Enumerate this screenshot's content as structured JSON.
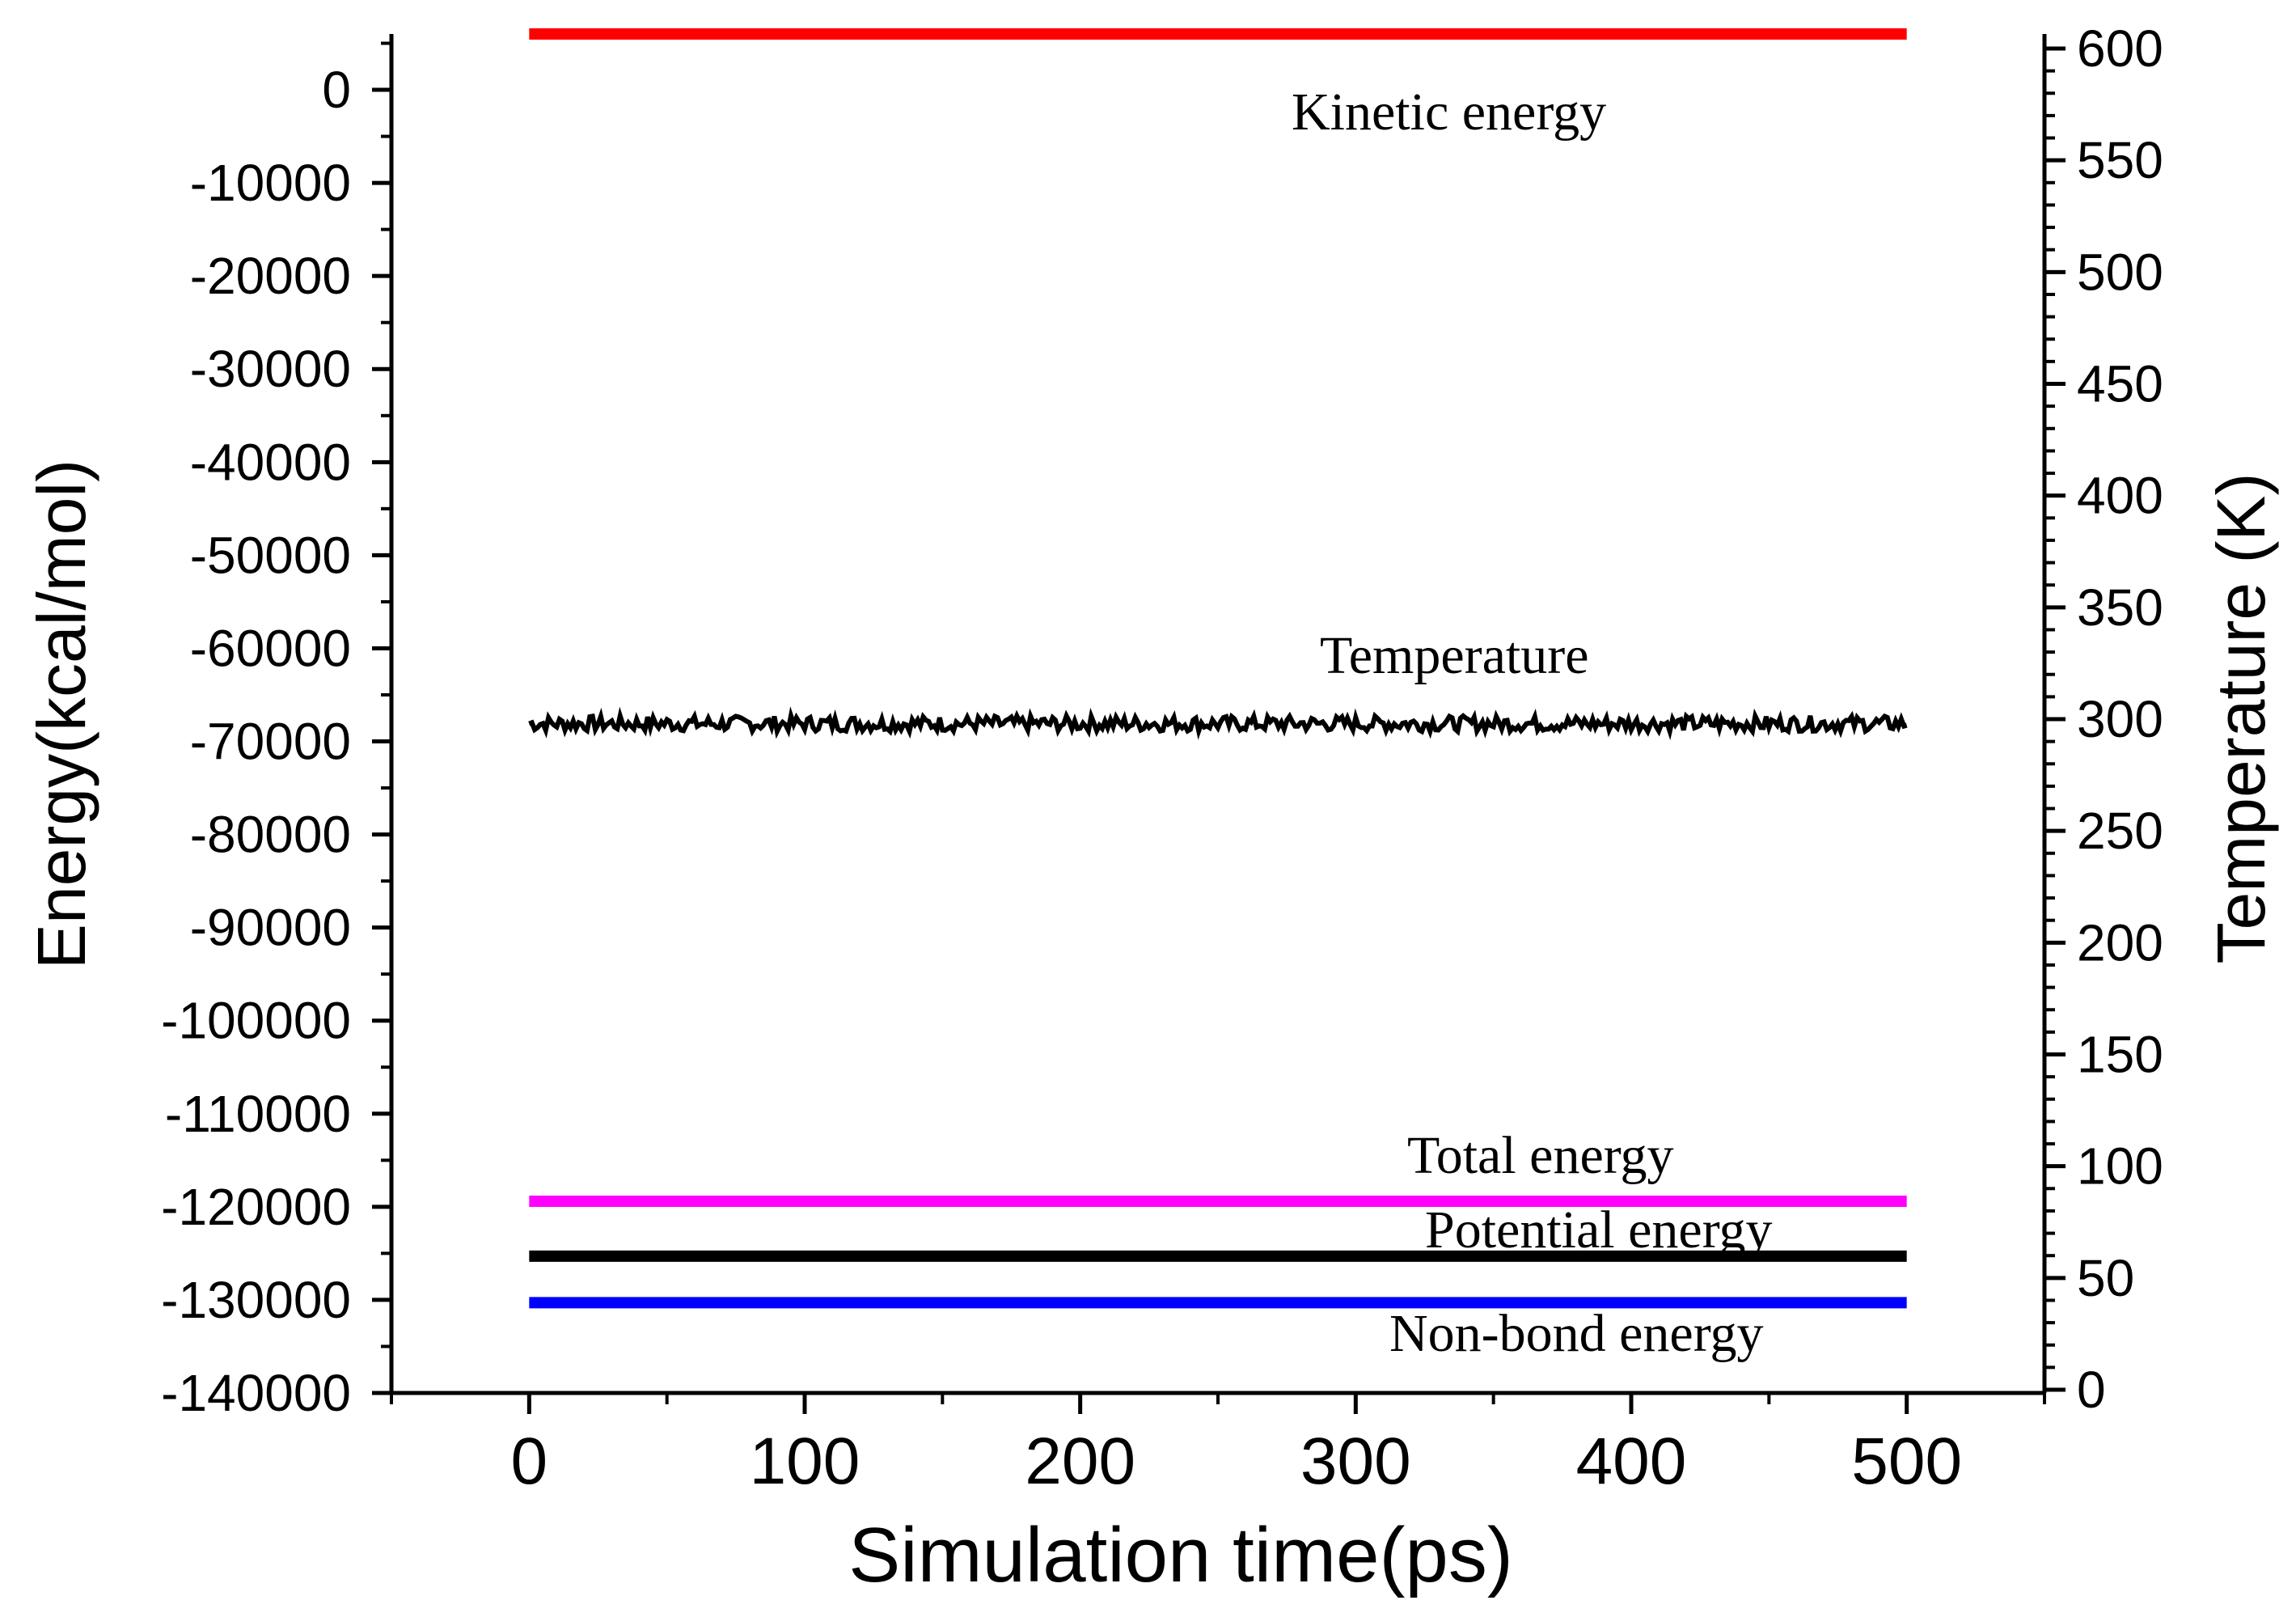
{
  "chart_data": {
    "type": "line",
    "x": [
      0,
      500
    ],
    "xlabel": "Simulation time(ps)",
    "xlim": [
      -50,
      550
    ],
    "xticks": [
      0,
      100,
      200,
      300,
      400,
      500
    ],
    "ylabel_left": "Energy(kcal/mol)",
    "ylim_left": [
      -140000,
      6000
    ],
    "yticks_left": [
      0,
      -10000,
      -20000,
      -30000,
      -40000,
      -50000,
      -60000,
      -70000,
      -80000,
      -90000,
      -100000,
      -110000,
      -120000,
      -130000,
      -140000
    ],
    "ylabel_right": "Temperature (K)",
    "ylim_right": [
      0,
      600
    ],
    "yticks_right": [
      600,
      550,
      500,
      450,
      400,
      350,
      300,
      250,
      200,
      150,
      100,
      50,
      0
    ],
    "grid": false,
    "series": [
      {
        "name": "Kinetic energy",
        "axis": "left",
        "color": "#ff0000",
        "x": [
          0,
          500
        ],
        "values": [
          6000,
          6000
        ]
      },
      {
        "name": "Temperature",
        "axis": "right",
        "color": "#000000",
        "x": [
          0,
          500
        ],
        "values": [
          298,
          298
        ],
        "noisy": true
      },
      {
        "name": "Total energy",
        "axis": "left",
        "color": "#ff00ff",
        "x": [
          0,
          500
        ],
        "values": [
          -119400,
          -119400
        ]
      },
      {
        "name": "Potential energy",
        "axis": "left",
        "color": "#000000",
        "x": [
          0,
          500
        ],
        "values": [
          -125300,
          -125300
        ]
      },
      {
        "name": "Non-bond energy",
        "axis": "left",
        "color": "#0000ff",
        "x": [
          0,
          500
        ],
        "values": [
          -130300,
          -130300
        ]
      }
    ]
  }
}
